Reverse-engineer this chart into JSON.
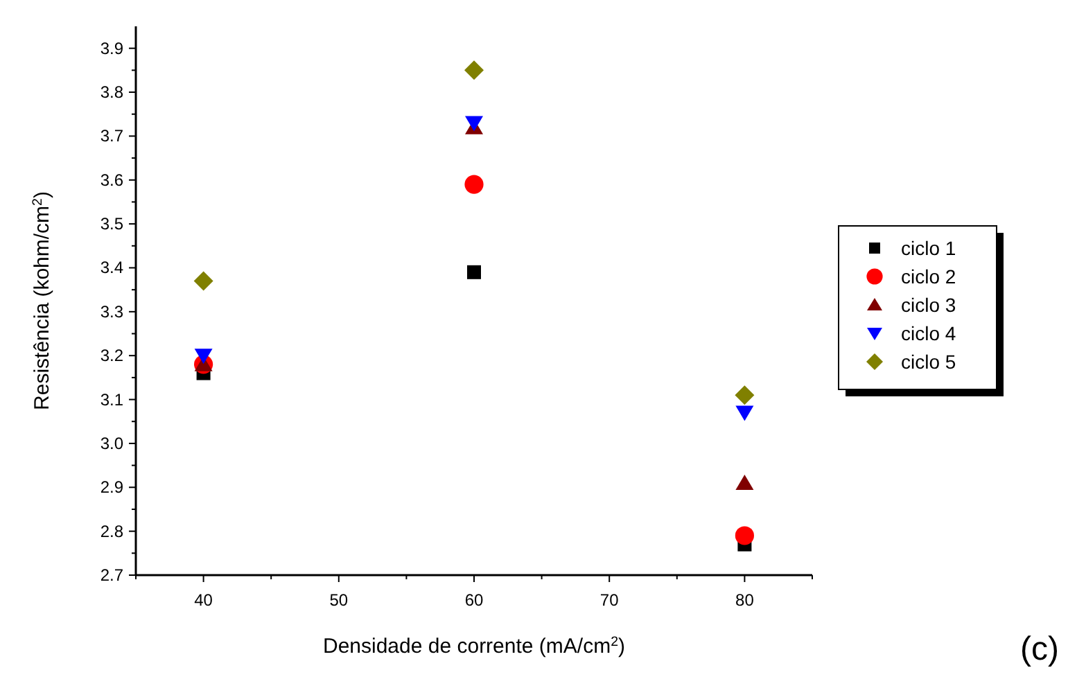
{
  "chart_data": {
    "type": "scatter",
    "xlabel": "Densidade de corrente (mA/cm$^{2}$)",
    "ylabel": "Resistência (kohm/cm$^{2}$)",
    "x": [
      40,
      60,
      80
    ],
    "xlim": [
      35,
      85
    ],
    "xticks": [
      {
        "value": 35,
        "label": null
      },
      40,
      {
        "value": 45,
        "label": null
      },
      50,
      {
        "value": 55,
        "label": null
      },
      60,
      {
        "value": 65,
        "label": null
      },
      70,
      {
        "value": 75,
        "label": null
      },
      80,
      {
        "value": 85,
        "label": null
      }
    ],
    "ylim": [
      2.7,
      3.95
    ],
    "yticks": [
      2.7,
      {
        "value": 2.75,
        "label": null
      },
      2.8,
      {
        "value": 2.85,
        "label": null
      },
      2.9,
      {
        "value": 2.95,
        "label": null
      },
      {
        "value": 3,
        "label": "3.0"
      },
      {
        "value": 3.05,
        "label": null
      },
      3.1,
      {
        "value": 3.15,
        "label": null
      },
      3.2,
      {
        "value": 3.25,
        "label": null
      },
      3.3,
      {
        "value": 3.35,
        "label": null
      },
      3.4,
      {
        "value": 3.45,
        "label": null
      },
      3.5,
      {
        "value": 3.55,
        "label": null
      },
      3.6,
      {
        "value": 3.65,
        "label": null
      },
      3.7,
      {
        "value": 3.75,
        "label": null
      },
      3.8,
      {
        "value": 3.85,
        "label": null
      },
      3.9
    ],
    "series": [
      {
        "name": "ciclo 1",
        "color": "#000000",
        "marker": "square",
        "values": [
          3.16,
          3.39,
          2.77
        ]
      },
      {
        "name": "ciclo 2",
        "color": "#ff0000",
        "marker": "circle",
        "values": [
          3.18,
          3.59,
          2.79
        ]
      },
      {
        "name": "ciclo 3",
        "color": "#800000",
        "marker": "triangle",
        "values": [
          3.18,
          3.72,
          2.91
        ]
      },
      {
        "name": "ciclo 4",
        "color": "#0000ff",
        "marker": "triangle-down",
        "values": [
          3.2,
          3.73,
          3.07
        ]
      },
      {
        "name": "ciclo 5",
        "color": "#808000",
        "marker": "diamond",
        "values": [
          3.37,
          3.85,
          3.11
        ]
      }
    ],
    "legend": "right",
    "grid": false,
    "annotations": [
      "(c)"
    ]
  }
}
